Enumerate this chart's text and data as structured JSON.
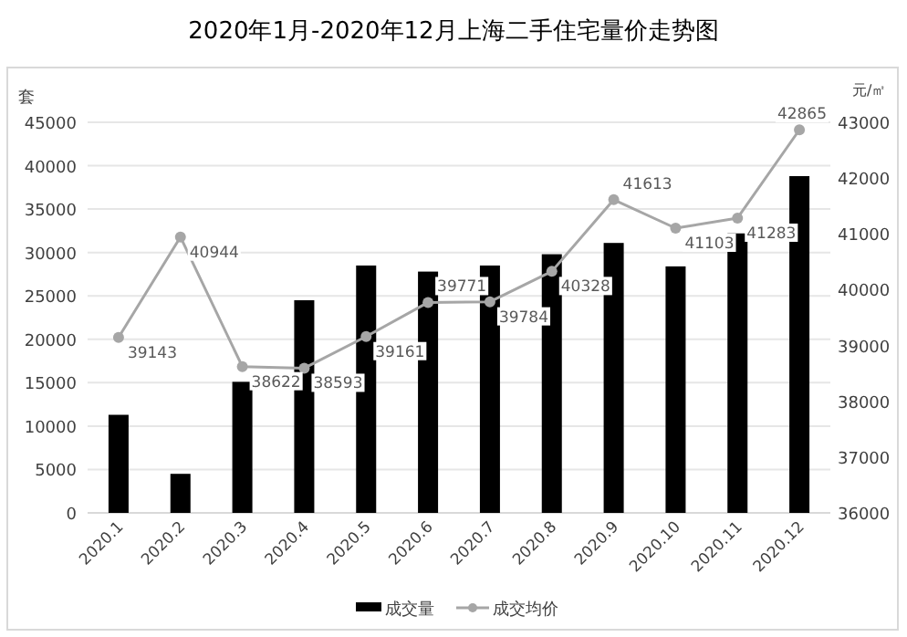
{
  "chart_data": {
    "type": "bar",
    "title": "2020年1月-2020年12月上海二手住宅量价走势图",
    "ylabel": "套",
    "y2label": "元/㎡",
    "categories": [
      "2020.1",
      "2020.2",
      "2020.3",
      "2020.4",
      "2020.5",
      "2020.6",
      "2020.7",
      "2020.8",
      "2020.9",
      "2020.10",
      "2020.11",
      "2020.12"
    ],
    "series": [
      {
        "name": "成交量",
        "color": "#000000",
        "values": [
          11300,
          4500,
          15100,
          24500,
          28500,
          27800,
          28500,
          29800,
          31100,
          28400,
          32200,
          38800
        ]
      },
      {
        "name": "成交均价",
        "type": "line",
        "axis": "y2",
        "color": "#a6a6a6",
        "marker": "circle",
        "values": [
          39143,
          40944,
          38622,
          38593,
          39161,
          39771,
          39784,
          40328,
          41613,
          41103,
          41283,
          42865
        ],
        "value_labels": [
          "39143",
          "40944",
          "38622",
          "38593",
          "39161",
          "39771",
          "39784",
          "40328",
          "41613",
          "41103",
          "41283",
          "42865"
        ]
      }
    ],
    "ylim": [
      0,
      45000
    ],
    "yticks": [
      0,
      5000,
      10000,
      15000,
      20000,
      25000,
      30000,
      35000,
      40000,
      45000
    ],
    "y2lim": [
      36000,
      43000
    ],
    "y2ticks": [
      36000,
      37000,
      38000,
      39000,
      40000,
      41000,
      42000,
      43000
    ],
    "grid": "y",
    "legend": "bottom"
  }
}
